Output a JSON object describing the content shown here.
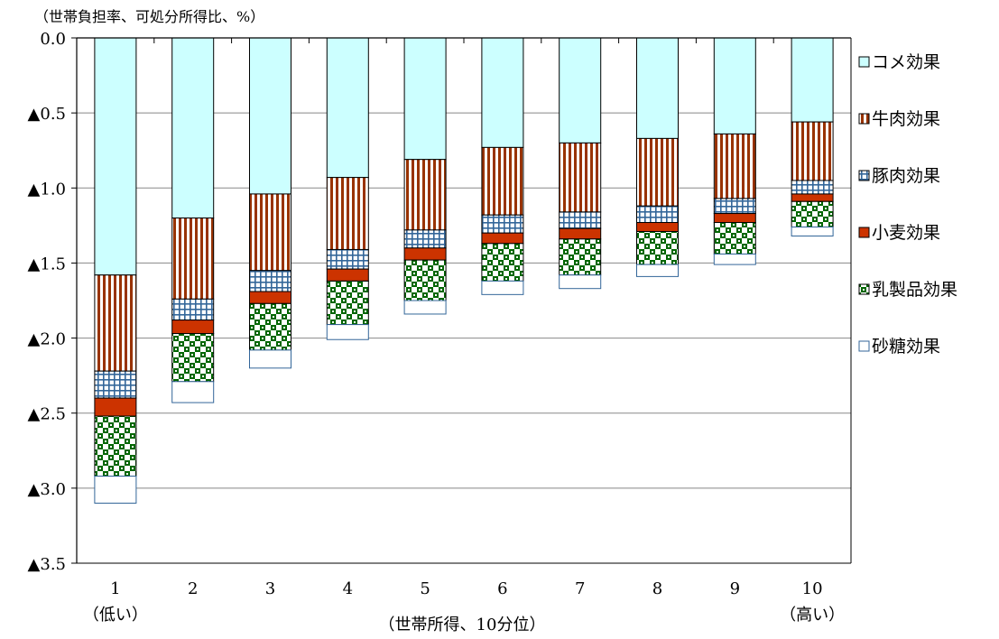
{
  "chart_data": {
    "type": "bar",
    "stacked": true,
    "title": "",
    "ylabel": "（世帯負担率、可処分所得比、%）",
    "xlabel": "（世帯所得、10分位）",
    "ylim": [
      0,
      3.5
    ],
    "y_direction": "downward",
    "grid": true,
    "legend_position": "right",
    "y_ticks": [
      {
        "value": 0.0,
        "label": "0.0"
      },
      {
        "value": 0.5,
        "label": "▲0.5"
      },
      {
        "value": 1.0,
        "label": "▲1.0"
      },
      {
        "value": 1.5,
        "label": "▲1.5"
      },
      {
        "value": 2.0,
        "label": "▲2.0"
      },
      {
        "value": 2.5,
        "label": "▲2.5"
      },
      {
        "value": 3.0,
        "label": "▲3.0"
      },
      {
        "value": 3.5,
        "label": "▲3.5"
      }
    ],
    "categories": [
      "1",
      "2",
      "3",
      "4",
      "5",
      "6",
      "7",
      "8",
      "9",
      "10"
    ],
    "category_sublabels": {
      "0": "（低い）",
      "9": "（高い）"
    },
    "series": [
      {
        "name": "コメ効果",
        "pattern": "solid",
        "fill": "#ccffff",
        "values": [
          1.58,
          1.2,
          1.04,
          0.93,
          0.81,
          0.73,
          0.7,
          0.67,
          0.64,
          0.56
        ]
      },
      {
        "name": "牛肉効果",
        "pattern": "vertical-stripes",
        "fill": "#993300",
        "values": [
          0.64,
          0.54,
          0.51,
          0.48,
          0.47,
          0.45,
          0.46,
          0.45,
          0.43,
          0.39
        ]
      },
      {
        "name": "豚肉効果",
        "pattern": "grid",
        "fill": "#336699",
        "values": [
          0.18,
          0.14,
          0.14,
          0.13,
          0.12,
          0.12,
          0.11,
          0.11,
          0.1,
          0.09
        ]
      },
      {
        "name": "小麦効果",
        "pattern": "solid",
        "fill": "#cc3300",
        "values": [
          0.12,
          0.09,
          0.08,
          0.08,
          0.08,
          0.07,
          0.07,
          0.06,
          0.06,
          0.05
        ]
      },
      {
        "name": "乳製品効果",
        "pattern": "checker",
        "fill": "#006600",
        "values": [
          0.4,
          0.32,
          0.31,
          0.29,
          0.27,
          0.25,
          0.24,
          0.22,
          0.21,
          0.17
        ]
      },
      {
        "name": "砂糖効果",
        "pattern": "solid",
        "fill": "#ffffff",
        "values": [
          0.18,
          0.14,
          0.12,
          0.1,
          0.09,
          0.09,
          0.09,
          0.08,
          0.07,
          0.06
        ]
      }
    ]
  }
}
